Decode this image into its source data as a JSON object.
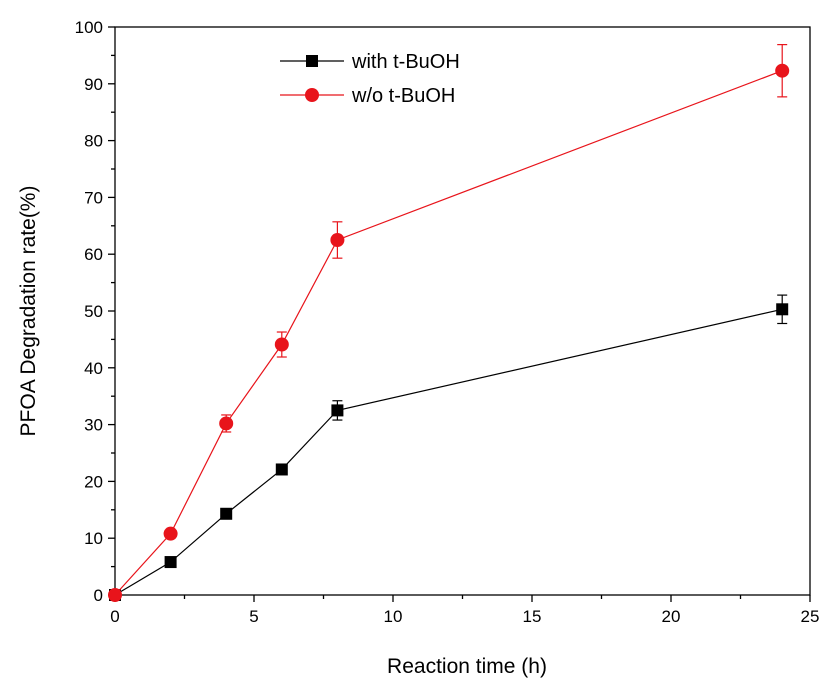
{
  "chart_data": {
    "type": "line",
    "xlabel": "Reaction time (h)",
    "ylabel": "PFOA Degradation rate(%)",
    "xlim": [
      0,
      25
    ],
    "ylim": [
      0,
      100
    ],
    "xticks": [
      0,
      5,
      10,
      15,
      20,
      25
    ],
    "yticks": [
      0,
      10,
      20,
      30,
      40,
      50,
      60,
      70,
      80,
      90,
      100
    ],
    "grid": false,
    "legend_position": "top-center",
    "series": [
      {
        "name": "with t-BuOH",
        "color": "#000000",
        "marker": "square",
        "x": [
          0,
          2,
          4,
          6,
          8,
          24
        ],
        "y": [
          0,
          5.8,
          14.3,
          22.1,
          32.5,
          50.3
        ],
        "err": [
          0,
          0.5,
          0.6,
          0.8,
          1.7,
          2.5
        ]
      },
      {
        "name": "w/o t-BuOH",
        "color": "#e8141b",
        "marker": "circle",
        "x": [
          0,
          2,
          4,
          6,
          8,
          24
        ],
        "y": [
          0,
          10.8,
          30.2,
          44.1,
          62.5,
          92.3
        ],
        "err": [
          0,
          0.5,
          1.5,
          2.2,
          3.2,
          4.6
        ]
      }
    ]
  }
}
